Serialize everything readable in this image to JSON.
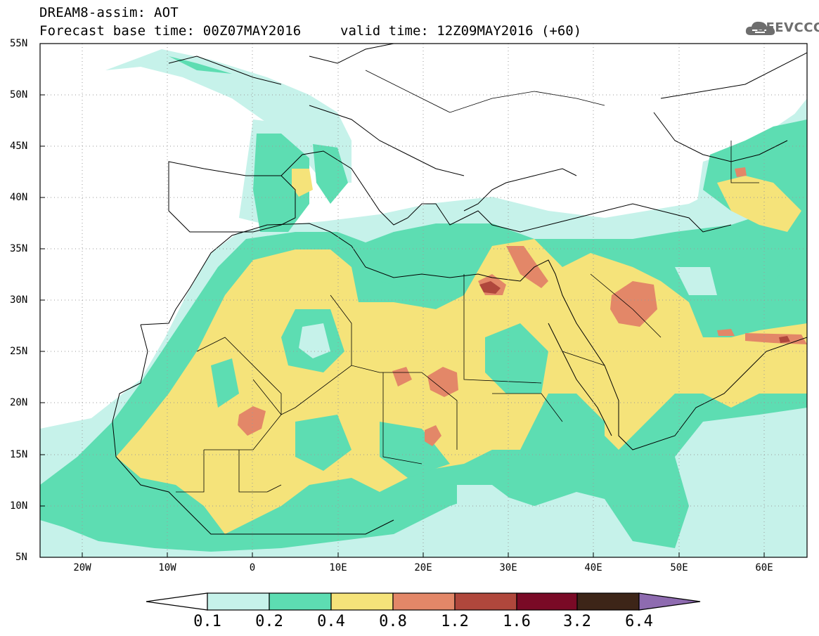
{
  "header": {
    "title_line1": "DREAM8-assim: AOT",
    "forecast_base": "Forecast base time: 00Z07MAY2016",
    "valid_time": "valid time: 12Z09MAY2016 (+60)",
    "logo_text": "SEEVCCC"
  },
  "map": {
    "variable": "AOT",
    "lat_labels": [
      "55N",
      "50N",
      "45N",
      "40N",
      "35N",
      "30N",
      "25N",
      "20N",
      "15N",
      "10N",
      "5N"
    ],
    "lon_labels": [
      "20W",
      "10W",
      "0",
      "10E",
      "20E",
      "30E",
      "40E",
      "50E",
      "60E"
    ],
    "extent": {
      "lon_min": -25,
      "lon_max": 65,
      "lat_min": 5,
      "lat_max": 55
    },
    "grid": "dotted"
  },
  "colorbar": {
    "labels": [
      "0.1",
      "0.2",
      "0.4",
      "0.8",
      "1.2",
      "1.6",
      "3.2",
      "6.4"
    ],
    "colors": [
      "#ffffff",
      "#c6f2ea",
      "#5dddb2",
      "#f5e37a",
      "#e38768",
      "#b0473c",
      "#7a0a26",
      "#3d2518",
      "#8e6bb0"
    ]
  },
  "colors": {
    "aot_0_1": "#c6f2ea",
    "aot_0_2": "#5dddb2",
    "aot_0_4": "#f5e37a",
    "aot_0_8": "#e38768",
    "aot_1_2": "#b0473c"
  }
}
